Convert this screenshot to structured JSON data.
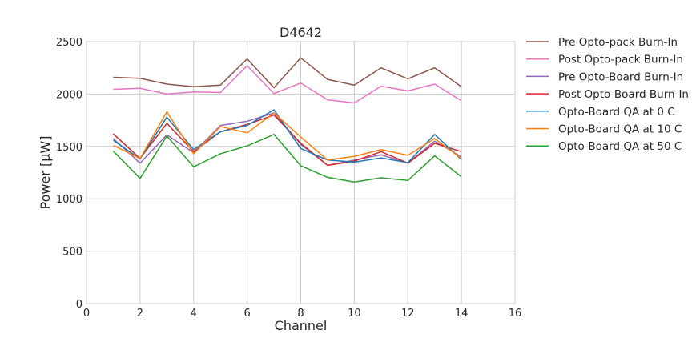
{
  "chart_data": {
    "type": "line",
    "title": "D4642",
    "xlabel": "Channel",
    "ylabel": "Power [μW]",
    "xlim": [
      0,
      16
    ],
    "ylim": [
      0,
      2500
    ],
    "xticks": [
      "0",
      "2",
      "4",
      "6",
      "8",
      "10",
      "12",
      "14",
      "16"
    ],
    "yticks": [
      "0",
      "500",
      "1000",
      "1500",
      "2000",
      "2500"
    ],
    "grid": true,
    "legend_position": "outside-right",
    "x": [
      1,
      2,
      3,
      4,
      5,
      6,
      7,
      8,
      9,
      10,
      11,
      12,
      13,
      14
    ],
    "series": [
      {
        "name": "Pre Opto-pack Burn-In",
        "color": "#8c564b",
        "values": [
          2160,
          2150,
          2095,
          2070,
          2085,
          2335,
          2060,
          2345,
          2140,
          2085,
          2250,
          2145,
          2250,
          2070
        ]
      },
      {
        "name": "Post Opto-pack Burn-In",
        "color": "#e377c2",
        "values": [
          2045,
          2055,
          2000,
          2020,
          2015,
          2270,
          2005,
          2105,
          1945,
          1915,
          2075,
          2030,
          2095,
          1935
        ]
      },
      {
        "name": "Pre Opto-Board Burn-In",
        "color": "#9467bd",
        "values": [
          1575,
          1340,
          1610,
          1440,
          1700,
          1740,
          1820,
          1520,
          1320,
          1370,
          1420,
          1340,
          1550,
          1400
        ]
      },
      {
        "name": "Post Opto-Board Burn-In",
        "color": "#d62728",
        "values": [
          1620,
          1385,
          1720,
          1450,
          1640,
          1710,
          1800,
          1530,
          1320,
          1360,
          1450,
          1340,
          1530,
          1450
        ]
      },
      {
        "name": "Opto-Board QA at 0 C",
        "color": "#1f77b4",
        "values": [
          1560,
          1380,
          1780,
          1470,
          1640,
          1700,
          1850,
          1480,
          1370,
          1350,
          1390,
          1345,
          1615,
          1375
        ]
      },
      {
        "name": "Opto-Board QA at 10 C",
        "color": "#ff7f0e",
        "values": [
          1510,
          1385,
          1830,
          1430,
          1690,
          1630,
          1820,
          1590,
          1370,
          1405,
          1470,
          1415,
          1575,
          1385
        ]
      },
      {
        "name": "Opto-Board QA at 50 C",
        "color": "#2ca02c",
        "values": [
          1455,
          1195,
          1600,
          1305,
          1430,
          1505,
          1615,
          1315,
          1205,
          1160,
          1200,
          1175,
          1410,
          1210
        ]
      }
    ]
  }
}
